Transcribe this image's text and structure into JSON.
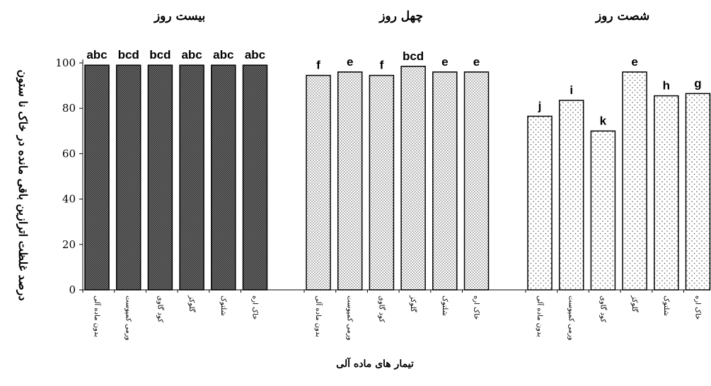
{
  "chart_data": {
    "type": "bar",
    "ylabel": "درصد غلظت اترازین باقی مانده در خاک نا ستون",
    "xlabel": "تیمار های ماده آلی",
    "ylim": [
      0,
      100
    ],
    "yticks": [
      0,
      20,
      40,
      60,
      80,
      100
    ],
    "grid": false,
    "legend": "none",
    "categories": [
      "بدون ماده آلی",
      "ورمی کمپوست",
      "کود گاوی",
      "گلوکز",
      "شلتوک",
      "خاک اره"
    ],
    "groups": [
      {
        "name": "بیست روز",
        "values": [
          99,
          99,
          99,
          99,
          99,
          99
        ],
        "letters": [
          "abc",
          "bcd",
          "bcd",
          "abc",
          "abc",
          "abc"
        ],
        "pattern": "dense",
        "patternColor": "#333333"
      },
      {
        "name": "چهل روز",
        "values": [
          94.5,
          96,
          94.5,
          98.5,
          96,
          96
        ],
        "letters": [
          "f",
          "e",
          "f",
          "bcd",
          "e",
          "e"
        ],
        "pattern": "dots-medium",
        "patternColor": "#555555"
      },
      {
        "name": "شصت روز",
        "values": [
          76.5,
          83.5,
          70,
          96,
          85.5,
          86.5
        ],
        "letters": [
          "j",
          "i",
          "k",
          "e",
          "h",
          "g"
        ],
        "pattern": "dots-sparse",
        "patternColor": "#555555"
      }
    ]
  }
}
